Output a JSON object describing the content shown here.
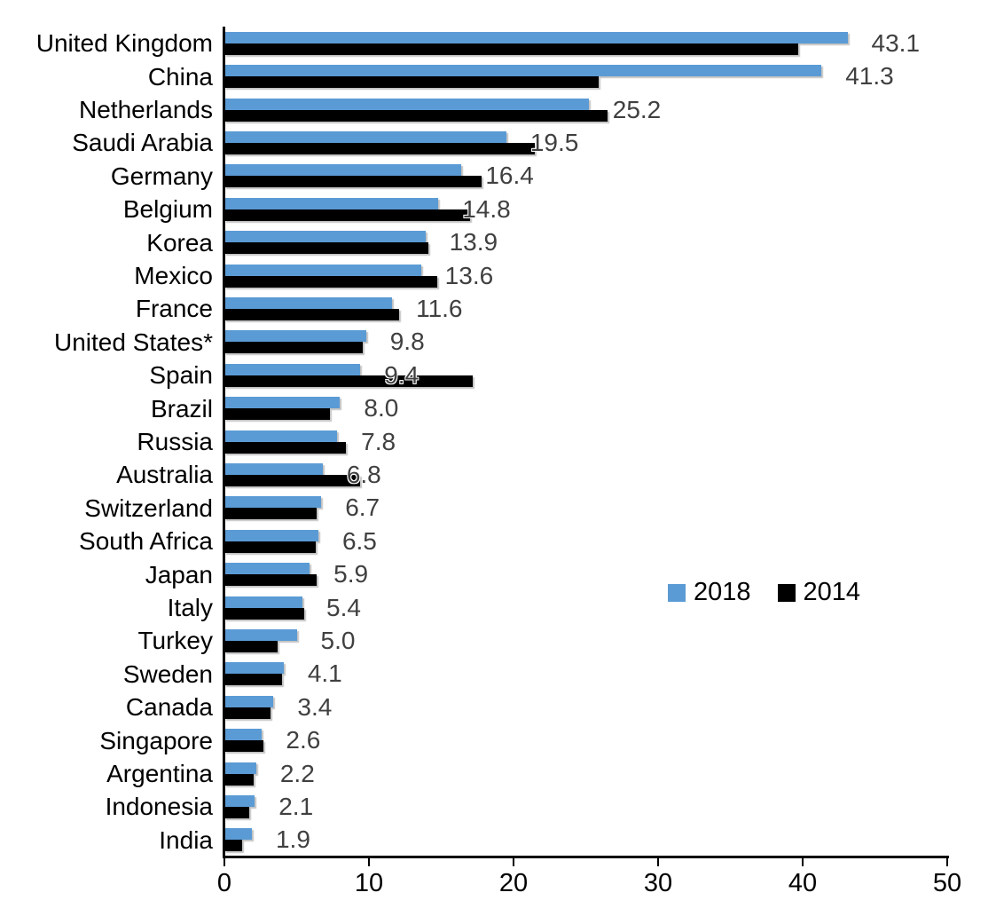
{
  "chart_data": {
    "type": "bar",
    "orientation": "horizontal",
    "title": "",
    "xlabel": "",
    "ylabel": "",
    "xlim": [
      0,
      50
    ],
    "x_ticks": [
      0,
      10,
      20,
      30,
      40,
      50
    ],
    "grid": false,
    "legend_position": "middle-right",
    "categories": [
      "United Kingdom",
      "China",
      "Netherlands",
      "Saudi Arabia",
      "Germany",
      "Belgium",
      "Korea",
      "Mexico",
      "France",
      "United States*",
      "Spain",
      "Brazil",
      "Russia",
      "Australia",
      "Switzerland",
      "South Africa",
      "Japan",
      "Italy",
      "Turkey",
      "Sweden",
      "Canada",
      "Singapore",
      "Argentina",
      "Indonesia",
      "India"
    ],
    "series": [
      {
        "name": "2018",
        "color": "#5B9BD5",
        "values": [
          43.1,
          41.3,
          25.2,
          19.5,
          16.4,
          14.8,
          13.9,
          13.6,
          11.6,
          9.8,
          9.4,
          8.0,
          7.8,
          6.8,
          6.7,
          6.5,
          5.9,
          5.4,
          5.0,
          4.1,
          3.4,
          2.6,
          2.2,
          2.1,
          1.9
        ]
      },
      {
        "name": "2014",
        "color": "#000000",
        "values": [
          39.7,
          25.9,
          26.5,
          21.5,
          17.8,
          17.0,
          14.1,
          14.7,
          12.1,
          9.6,
          17.2,
          7.3,
          8.4,
          9.4,
          6.4,
          6.3,
          6.4,
          5.5,
          3.7,
          4.0,
          3.2,
          2.7,
          2.0,
          1.7,
          1.2
        ]
      }
    ],
    "data_labels": {
      "shown_for_series": "2018",
      "color": "#404040",
      "decimals": 1
    }
  }
}
